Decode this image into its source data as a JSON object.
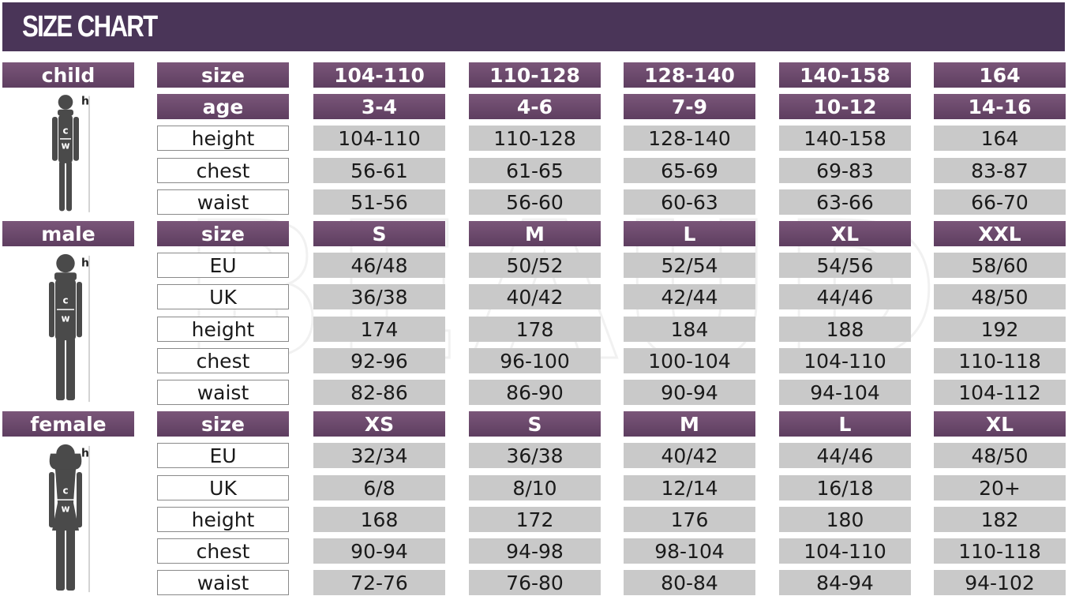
{
  "title": "SIZE CHART",
  "watermark": "BEAUD",
  "colors": {
    "title_bar": "#4a3558",
    "header": "#6b4a6b",
    "value_cell": "#c9c9c9"
  },
  "sections": [
    {
      "name": "child",
      "figure_icon": "child-silhouette-icon",
      "measure_labels": [
        "h",
        "c",
        "w"
      ],
      "header_rows": [
        {
          "label": "size",
          "values": [
            "104-110",
            "110-128",
            "128-140",
            "140-158",
            "164"
          ]
        },
        {
          "label": "age",
          "values": [
            "3-4",
            "4-6",
            "7-9",
            "10-12",
            "14-16"
          ]
        }
      ],
      "rows": [
        {
          "label": "height",
          "values": [
            "104-110",
            "110-128",
            "128-140",
            "140-158",
            "164"
          ]
        },
        {
          "label": "chest",
          "values": [
            "56-61",
            "61-65",
            "65-69",
            "69-83",
            "83-87"
          ]
        },
        {
          "label": "waist",
          "values": [
            "51-56",
            "56-60",
            "60-63",
            "63-66",
            "66-70"
          ]
        }
      ]
    },
    {
      "name": "male",
      "figure_icon": "male-silhouette-icon",
      "measure_labels": [
        "h",
        "c",
        "w"
      ],
      "header_rows": [
        {
          "label": "size",
          "values": [
            "S",
            "M",
            "L",
            "XL",
            "XXL"
          ]
        }
      ],
      "rows": [
        {
          "label": "EU",
          "values": [
            "46/48",
            "50/52",
            "52/54",
            "54/56",
            "58/60"
          ]
        },
        {
          "label": "UK",
          "values": [
            "36/38",
            "40/42",
            "42/44",
            "44/46",
            "48/50"
          ]
        },
        {
          "label": "height",
          "values": [
            "174",
            "178",
            "184",
            "188",
            "192"
          ]
        },
        {
          "label": "chest",
          "values": [
            "92-96",
            "96-100",
            "100-104",
            "104-110",
            "110-118"
          ]
        },
        {
          "label": "waist",
          "values": [
            "82-86",
            "86-90",
            "90-94",
            "94-104",
            "104-112"
          ]
        }
      ]
    },
    {
      "name": "female",
      "figure_icon": "female-silhouette-icon",
      "measure_labels": [
        "h",
        "c",
        "w"
      ],
      "header_rows": [
        {
          "label": "size",
          "values": [
            "XS",
            "S",
            "M",
            "L",
            "XL"
          ]
        }
      ],
      "rows": [
        {
          "label": "EU",
          "values": [
            "32/34",
            "36/38",
            "40/42",
            "44/46",
            "48/50"
          ]
        },
        {
          "label": "UK",
          "values": [
            "6/8",
            "8/10",
            "12/14",
            "16/18",
            "20+"
          ]
        },
        {
          "label": "height",
          "values": [
            "168",
            "172",
            "176",
            "180",
            "182"
          ]
        },
        {
          "label": "chest",
          "values": [
            "90-94",
            "94-98",
            "98-104",
            "104-110",
            "110-118"
          ]
        },
        {
          "label": "waist",
          "values": [
            "72-76",
            "76-80",
            "80-84",
            "84-94",
            "94-102"
          ]
        }
      ]
    }
  ]
}
